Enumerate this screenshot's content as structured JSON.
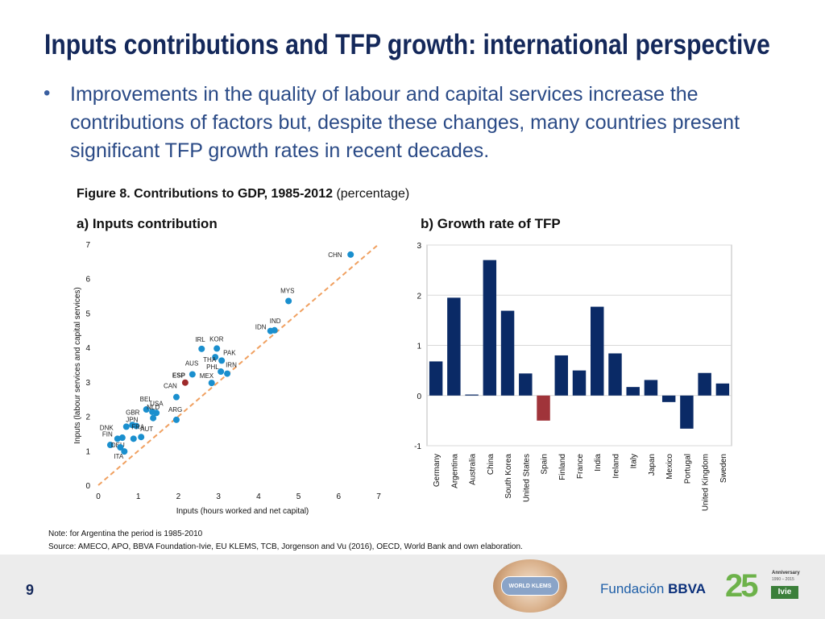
{
  "slide": {
    "title": "Inputs contributions and TFP growth: international perspective",
    "bullet": "Improvements in the quality of labour and capital services increase the contributions of factors but, despite these changes, many countries present significant TFP growth rates in recent decades.",
    "figure_caption_bold": "Figure 8. Contributions to GDP, 1985-2012",
    "figure_caption_rest": " (percentage)",
    "panel_a_title": "a) Inputs contribution",
    "panel_b_title": "b) Growth rate of TFP",
    "note": "Note: for Argentina the period is 1985-2010",
    "source": "Source: AMECO, APO, BBVA Foundation-Ivie, EU KLEMS, TCB, Jorgenson and  Vu (2016), OECD, World Bank and own elaboration.",
    "page_number": "9"
  },
  "footer": {
    "worldklems_logo": "WORLD KLEMS",
    "fbbva_prefix": "Fundación ",
    "fbbva_brand": "BBVA",
    "ivie_number": "25",
    "ivie_anniversary": "Anniversary",
    "ivie_years": "1990 – 2015",
    "ivie_name": "Ivie"
  },
  "colors": {
    "title": "#14285a",
    "bullet": "#2a4a86",
    "point": "#1a8fce",
    "highlight_point": "#9e2a2b",
    "bar": "#0a2a66",
    "negative_highlight_bar": "#a0343a",
    "diagonal": "#f0a060"
  },
  "chart_data": [
    {
      "type": "scatter",
      "title": "a) Inputs contribution",
      "xlabel": "Inputs (hours worked and net capital)",
      "ylabel": "Inputs (labour services and capital services)",
      "xlim": [
        0,
        7
      ],
      "ylim": [
        0,
        7
      ],
      "xticks": [
        "0",
        "1",
        "2",
        "3",
        "4",
        "5",
        "6",
        "7"
      ],
      "yticks": [
        "0",
        "1",
        "2",
        "3",
        "4",
        "5",
        "6",
        "7"
      ],
      "diagonal": "45-degree line",
      "points": [
        {
          "label": "CHN",
          "x": 6.3,
          "y": 6.7
        },
        {
          "label": "MYS",
          "x": 4.75,
          "y": 5.35
        },
        {
          "label": "IND",
          "x": 4.4,
          "y": 4.5
        },
        {
          "label": "IDN",
          "x": 4.3,
          "y": 4.48
        },
        {
          "label": "IRL",
          "x": 2.58,
          "y": 3.96
        },
        {
          "label": "KOR",
          "x": 2.96,
          "y": 3.97
        },
        {
          "label": "THA",
          "x": 2.92,
          "y": 3.72
        },
        {
          "label": "PAK",
          "x": 3.08,
          "y": 3.62
        },
        {
          "label": "AUS",
          "x": 2.35,
          "y": 3.22
        },
        {
          "label": "PHL",
          "x": 3.06,
          "y": 3.3
        },
        {
          "label": "IRN",
          "x": 3.22,
          "y": 3.24
        },
        {
          "label": "ESP",
          "x": 2.17,
          "y": 2.98,
          "highlight": true
        },
        {
          "label": "MEX",
          "x": 2.83,
          "y": 2.97
        },
        {
          "label": "CAN",
          "x": 1.95,
          "y": 2.56
        },
        {
          "label": "BEL",
          "x": 1.2,
          "y": 2.2
        },
        {
          "label": "USA",
          "x": 1.45,
          "y": 2.1
        },
        {
          "label": "NLD",
          "x": 1.35,
          "y": 2.13
        },
        {
          "label": "ARG",
          "x": 1.95,
          "y": 1.9
        },
        {
          "label": "GBR",
          "x": 1.37,
          "y": 1.95
        },
        {
          "label": "JPN",
          "x": 0.85,
          "y": 1.75
        },
        {
          "label": "DNK",
          "x": 0.7,
          "y": 1.7
        },
        {
          "label": "FRA",
          "x": 0.95,
          "y": 1.72
        },
        {
          "label": "AUT",
          "x": 1.07,
          "y": 1.4
        },
        {
          "label": "FIN",
          "x": 0.48,
          "y": 1.35
        },
        {
          "label": "SWE",
          "x": 0.88,
          "y": 1.35
        },
        {
          "label": "PRT",
          "x": 0.6,
          "y": 1.38
        },
        {
          "label": "DEU",
          "x": 0.3,
          "y": 1.17
        },
        {
          "label": "ITA",
          "x": 0.55,
          "y": 1.1
        },
        {
          "label": "GRC",
          "x": 0.65,
          "y": 0.98
        }
      ]
    },
    {
      "type": "bar",
      "title": "b) Growth rate of TFP",
      "ylim": [
        -1,
        3
      ],
      "yticks": [
        "-1",
        "0",
        "1",
        "2",
        "3"
      ],
      "categories": [
        "Germany",
        "Argentina",
        "Australia",
        "China",
        "South Korea",
        "United States",
        "Spain",
        "Finland",
        "France",
        "India",
        "Ireland",
        "Italy",
        "Japan",
        "Mexico",
        "Portugal",
        "United Kingdom",
        "Sweden"
      ],
      "values": [
        0.68,
        1.95,
        0.02,
        2.7,
        1.69,
        0.44,
        -0.5,
        0.8,
        0.5,
        1.77,
        0.84,
        0.17,
        0.31,
        -0.13,
        -0.66,
        0.45,
        0.24
      ],
      "highlight": "Spain"
    }
  ]
}
